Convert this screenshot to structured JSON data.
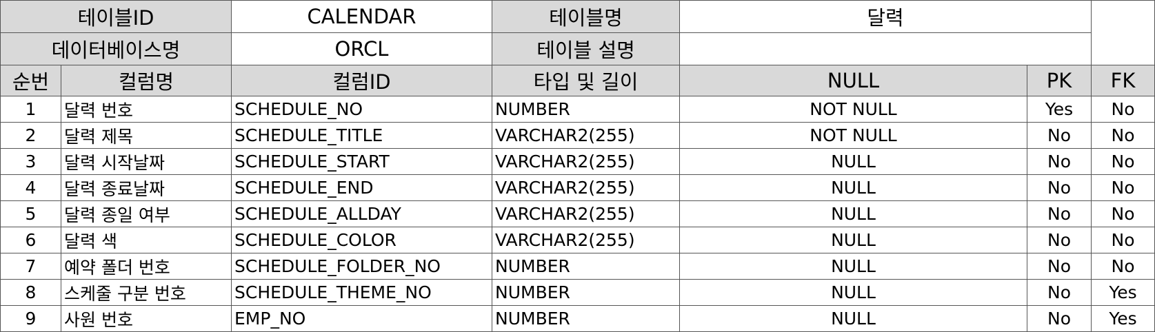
{
  "meta": {
    "table_id_label": "테이블ID",
    "table_id_value": "CALENDAR",
    "table_name_label": "테이블명",
    "table_name_value": "달력",
    "db_name_label": "데이터베이스명",
    "db_name_value": "ORCL",
    "table_desc_label": "테이블 설명",
    "table_desc_value": ""
  },
  "columns": {
    "seq": "순번",
    "col_name": "컬럼명",
    "col_id": "컬럼ID",
    "type_len": "타입 및 길이",
    "null": "NULL",
    "pk": "PK",
    "fk": "FK"
  },
  "rows": [
    {
      "seq": "1",
      "name": "달력 번호",
      "id": "SCHEDULE_NO",
      "type": "NUMBER",
      "null": "NOT NULL",
      "pk": "Yes",
      "fk": "No"
    },
    {
      "seq": "2",
      "name": "달력 제목",
      "id": "SCHEDULE_TITLE",
      "type": "VARCHAR2(255)",
      "null": "NOT NULL",
      "pk": "No",
      "fk": "No"
    },
    {
      "seq": "3",
      "name": "달력 시작날짜",
      "id": "SCHEDULE_START",
      "type": "VARCHAR2(255)",
      "null": "NULL",
      "pk": "No",
      "fk": "No"
    },
    {
      "seq": "4",
      "name": "달력 종료날짜",
      "id": "SCHEDULE_END",
      "type": "VARCHAR2(255)",
      "null": "NULL",
      "pk": "No",
      "fk": "No"
    },
    {
      "seq": "5",
      "name": "달력 종일 여부",
      "id": "SCHEDULE_ALLDAY",
      "type": "VARCHAR2(255)",
      "null": "NULL",
      "pk": "No",
      "fk": "No"
    },
    {
      "seq": "6",
      "name": "달력 색",
      "id": "SCHEDULE_COLOR",
      "type": "VARCHAR2(255)",
      "null": "NULL",
      "pk": "No",
      "fk": "No"
    },
    {
      "seq": "7",
      "name": "예약 폴더 번호",
      "id": "SCHEDULE_FOLDER_NO",
      "type": "NUMBER",
      "null": "NULL",
      "pk": "No",
      "fk": "No"
    },
    {
      "seq": "8",
      "name": "스케줄 구분 번호",
      "id": "SCHEDULE_THEME_NO",
      "type": "NUMBER",
      "null": "NULL",
      "pk": "No",
      "fk": "Yes"
    },
    {
      "seq": "9",
      "name": "사원 번호",
      "id": "EMP_NO",
      "type": "NUMBER",
      "null": "NULL",
      "pk": "No",
      "fk": "Yes"
    }
  ]
}
